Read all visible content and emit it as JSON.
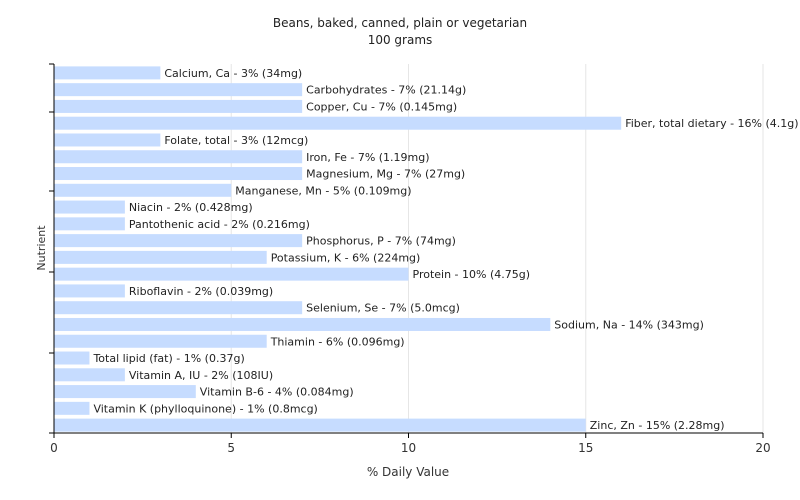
{
  "chart_data": {
    "type": "bar",
    "orientation": "horizontal",
    "title": "Beans, baked, canned, plain or vegetarian",
    "subtitle": "100 grams",
    "xlabel": "% Daily Value",
    "ylabel": "Nutrient",
    "xlim": [
      0,
      20
    ],
    "xticks": [
      "0",
      "5",
      "10",
      "15",
      "20"
    ],
    "grid": true,
    "bar_color": "#c6dcff",
    "categories": [
      "Calcium, Ca",
      "Carbohydrates",
      "Copper, Cu",
      "Fiber, total dietary",
      "Folate, total",
      "Iron, Fe",
      "Magnesium, Mg",
      "Manganese, Mn",
      "Niacin",
      "Pantothenic acid",
      "Phosphorus, P",
      "Potassium, K",
      "Protein",
      "Riboflavin",
      "Selenium, Se",
      "Sodium, Na",
      "Thiamin",
      "Total lipid (fat)",
      "Vitamin A, IU",
      "Vitamin B-6",
      "Vitamin K (phylloquinone)",
      "Zinc, Zn"
    ],
    "values": [
      3,
      7,
      7,
      16,
      3,
      7,
      7,
      5,
      2,
      2,
      7,
      6,
      10,
      2,
      7,
      14,
      6,
      1,
      2,
      4,
      1,
      15
    ],
    "labels": [
      "Calcium, Ca - 3% (34mg)",
      "Carbohydrates - 7% (21.14g)",
      "Copper, Cu - 7% (0.145mg)",
      "Fiber, total dietary - 16% (4.1g)",
      "Folate, total - 3% (12mcg)",
      "Iron, Fe - 7% (1.19mg)",
      "Magnesium, Mg - 7% (27mg)",
      "Manganese, Mn - 5% (0.109mg)",
      "Niacin - 2% (0.428mg)",
      "Pantothenic acid - 2% (0.216mg)",
      "Phosphorus, P - 7% (74mg)",
      "Potassium, K - 6% (224mg)",
      "Protein - 10% (4.75g)",
      "Riboflavin - 2% (0.039mg)",
      "Selenium, Se - 7% (5.0mcg)",
      "Sodium, Na - 14% (343mg)",
      "Thiamin - 6% (0.096mg)",
      "Total lipid (fat) - 1% (0.37g)",
      "Vitamin A, IU - 2% (108IU)",
      "Vitamin B-6 - 4% (0.084mg)",
      "Vitamin K (phylloquinone) - 1% (0.8mcg)",
      "Zinc, Zn - 15% (2.28mg)"
    ]
  }
}
